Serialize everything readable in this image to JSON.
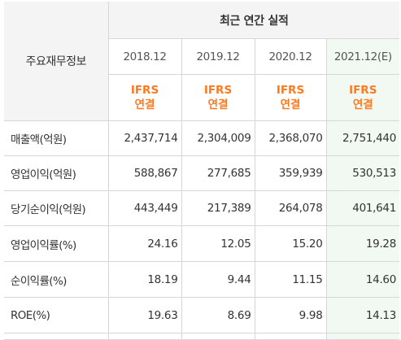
{
  "table": {
    "corner_label": "주요재무정보",
    "group_header": "최근 연간 실적",
    "columns": [
      {
        "period": "2018.12",
        "estimate": false,
        "basis_line1": "IFRS",
        "basis_line2": "연결"
      },
      {
        "period": "2019.12",
        "estimate": false,
        "basis_line1": "IFRS",
        "basis_line2": "연결"
      },
      {
        "period": "2020.12",
        "estimate": false,
        "basis_line1": "IFRS",
        "basis_line2": "연결"
      },
      {
        "period": "2021.12(E)",
        "estimate": true,
        "basis_line1": "IFRS",
        "basis_line2": "연결"
      }
    ],
    "rows": [
      {
        "label": "매출액(억원)",
        "values": [
          "2,437,714",
          "2,304,009",
          "2,368,070",
          "2,751,440"
        ]
      },
      {
        "label": "영업이익(억원)",
        "values": [
          "588,867",
          "277,685",
          "359,939",
          "530,513"
        ]
      },
      {
        "label": "당기순이익(억원)",
        "values": [
          "443,449",
          "217,389",
          "264,078",
          "401,641"
        ]
      },
      {
        "label": "영업이익률(%)",
        "values": [
          "24.16",
          "12.05",
          "15.20",
          "19.28"
        ]
      },
      {
        "label": "순이익률(%)",
        "values": [
          "18.19",
          "9.44",
          "11.15",
          "14.60"
        ]
      },
      {
        "label": "ROE(%)",
        "values": [
          "19.63",
          "8.69",
          "9.98",
          "14.13"
        ]
      }
    ],
    "colors": {
      "header_bg": "#f4f4f4",
      "estimate_bg": "#f2f9f2",
      "basis_text": "#ff7a1f",
      "border": "#d6d6d6"
    }
  }
}
